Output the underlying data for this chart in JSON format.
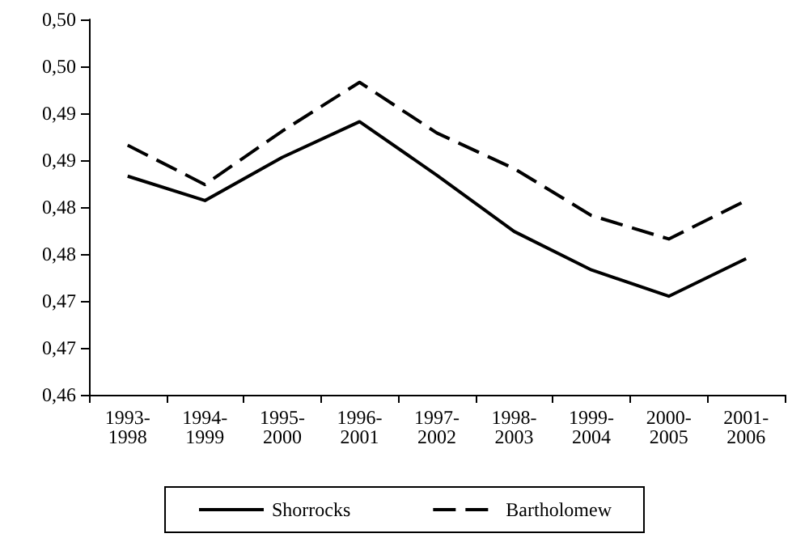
{
  "chart_data": {
    "type": "line",
    "categories": [
      "1993-1998",
      "1994-1999",
      "1995-2000",
      "1996-2001",
      "1997-2002",
      "1998-2003",
      "1999-2004",
      "2000-2005",
      "2001-2006"
    ],
    "series": [
      {
        "name": "Shorrocks",
        "color": "#000000",
        "line_style": "solid",
        "values": [
          0.4833,
          0.4807,
          0.4853,
          0.4891,
          0.4834,
          0.4774,
          0.4733,
          0.4705,
          0.4745
        ]
      },
      {
        "name": "Bartholomew",
        "color": "#000000",
        "line_style": "dashed",
        "values": [
          0.4866,
          0.4824,
          0.4881,
          0.4933,
          0.4879,
          0.4841,
          0.4791,
          0.4766,
          0.4807
        ]
      }
    ],
    "ylim": [
      0.46,
      0.5
    ],
    "yticks": [
      {
        "value": 0.46,
        "label": "0,46"
      },
      {
        "value": 0.465,
        "label": "0,47"
      },
      {
        "value": 0.47,
        "label": "0,47"
      },
      {
        "value": 0.475,
        "label": "0,48"
      },
      {
        "value": 0.48,
        "label": "0,48"
      },
      {
        "value": 0.485,
        "label": "0,49"
      },
      {
        "value": 0.49,
        "label": "0,49"
      },
      {
        "value": 0.495,
        "label": "0,50"
      },
      {
        "value": 0.5,
        "label": "0,50"
      }
    ],
    "grid": false,
    "legend": "bottom",
    "marker": "none"
  }
}
